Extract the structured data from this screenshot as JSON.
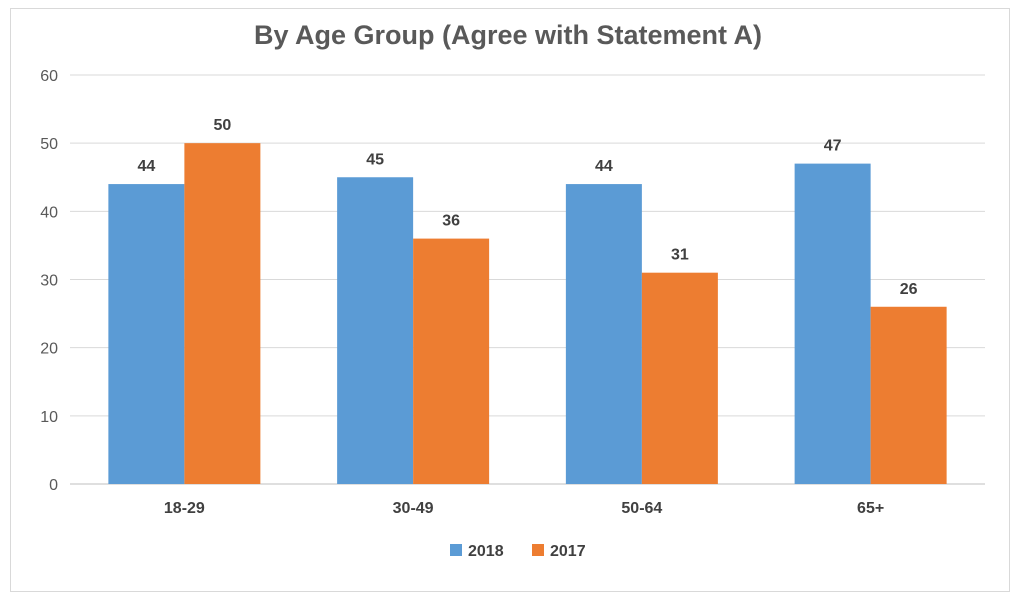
{
  "chart_data": {
    "type": "bar",
    "title": "By Age Group (Agree with Statement A)",
    "categories": [
      "18-29",
      "30-49",
      "50-64",
      "65+"
    ],
    "series": [
      {
        "name": "2018",
        "values": [
          44,
          45,
          44,
          47
        ],
        "color": "#5b9bd5"
      },
      {
        "name": "2017",
        "values": [
          50,
          36,
          31,
          26
        ],
        "color": "#ed7d31"
      }
    ],
    "ylim": [
      0,
      60
    ],
    "yticks": [
      0,
      10,
      20,
      30,
      40,
      50,
      60
    ],
    "grid": true,
    "legend": "bottom"
  }
}
